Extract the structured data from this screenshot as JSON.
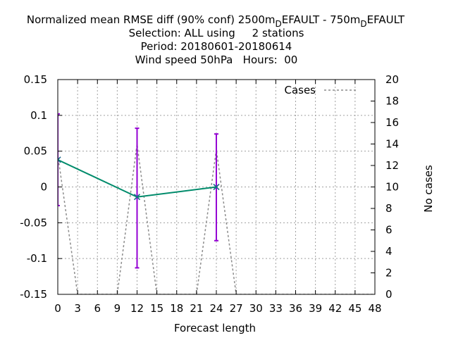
{
  "chart_data": {
    "type": "line",
    "title_lines": [
      "Normalized mean RMSE diff (90% conf) 2500m",
      "D",
      "EFAULT - 750m",
      "D",
      "EFAULT",
      "Selection: ALL using     2 stations",
      "Period: 20180601-20180614",
      "Wind speed 50hPa   Hours:  00"
    ],
    "xlabel": "Forecast length",
    "ylabel": "",
    "y2label": "No cases",
    "xlim": [
      0,
      48
    ],
    "ylim": [
      -0.15,
      0.15
    ],
    "y2lim": [
      0,
      20
    ],
    "grid": true,
    "legend_position": "top-right",
    "x_ticks": [
      "0",
      "3",
      "6",
      "9",
      "12",
      "15",
      "18",
      "21",
      "24",
      "27",
      "30",
      "33",
      "36",
      "39",
      "42",
      "45",
      "48"
    ],
    "y_ticks": [
      "0.15",
      "0.1",
      "0.05",
      "0",
      "-0.05",
      "-0.1",
      "-0.15"
    ],
    "y2_ticks": [
      "20",
      "18",
      "16",
      "14",
      "12",
      "10",
      "8",
      "6",
      "4",
      "2",
      "0"
    ],
    "series": [
      {
        "axis": "y",
        "color": "#008b6b",
        "x": [
          0,
          12,
          24
        ],
        "values": [
          0.038,
          -0.014,
          0.0
        ]
      },
      {
        "axis": "y",
        "type": "errorbar",
        "color": "#9400d3",
        "x": [
          0,
          12,
          24
        ],
        "low": [
          -0.026,
          -0.113,
          -0.075
        ],
        "high": [
          0.102,
          0.082,
          0.074
        ]
      },
      {
        "name": "Cases",
        "axis": "y2",
        "color": "#8c8c8c",
        "dashed": true,
        "x": [
          0,
          3,
          6,
          9,
          12,
          15,
          18,
          21,
          24,
          27,
          30,
          33,
          36,
          39,
          42,
          45,
          48
        ],
        "values": [
          13,
          0,
          0,
          0,
          14,
          0,
          0,
          0,
          13.5,
          0,
          0,
          0,
          0,
          0,
          0,
          0,
          0
        ]
      }
    ]
  }
}
